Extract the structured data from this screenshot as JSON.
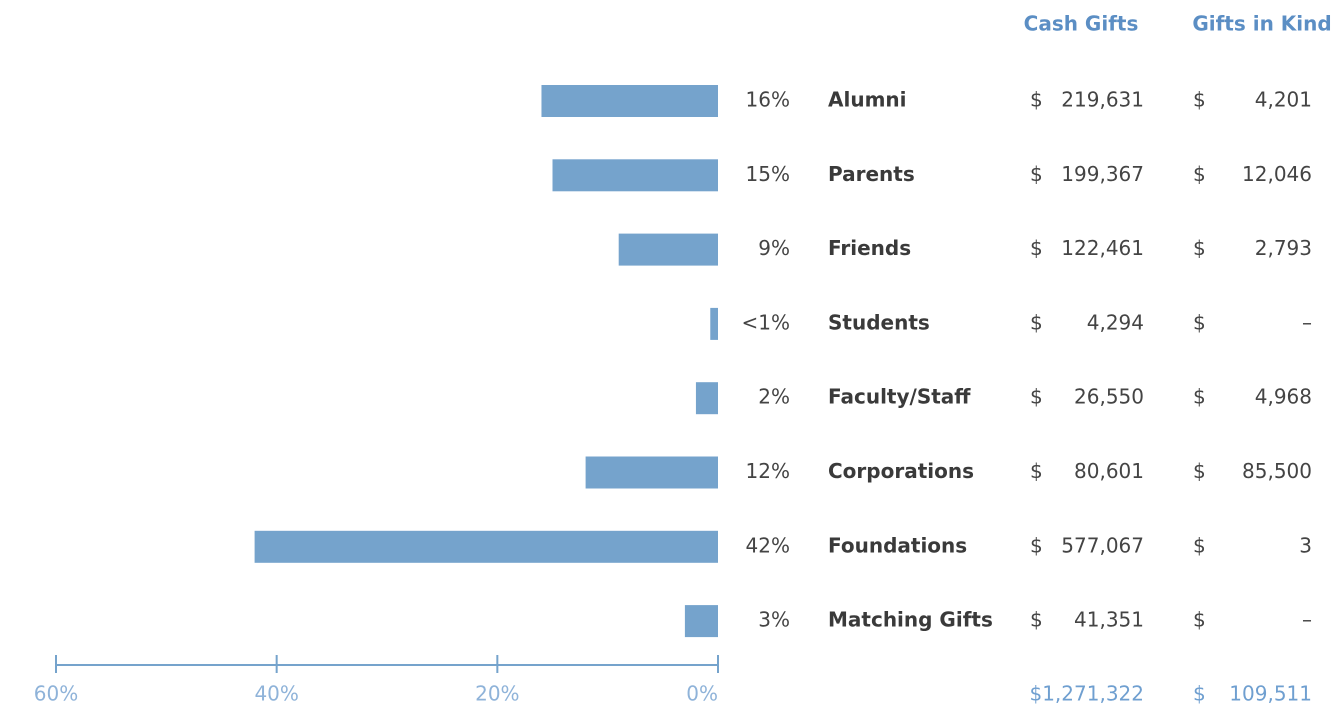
{
  "chart_data": {
    "type": "bar",
    "orientation": "horizontal",
    "color": "#75a3cc",
    "categories": [
      "Alumni",
      "Parents",
      "Friends",
      "Students",
      "Faculty/Staff",
      "Corporations",
      "Foundations",
      "Matching Gifts"
    ],
    "values": [
      16,
      15,
      9,
      0.7,
      2,
      12,
      42,
      3
    ],
    "value_labels": [
      "16%",
      "15%",
      "9%",
      "<1%",
      "2%",
      "12%",
      "42%",
      "3%"
    ],
    "xlim": [
      60,
      0
    ],
    "xticks": [
      {
        "value": 60,
        "label": "60%"
      },
      {
        "value": 40,
        "label": "40%"
      },
      {
        "value": 20,
        "label": "20%"
      },
      {
        "value": 0,
        "label": "0%"
      }
    ],
    "table": {
      "columns": [
        "Cash Gifts",
        "Gifts in Kind"
      ],
      "currency": "$",
      "rows": [
        [
          "219,631",
          "4,201"
        ],
        [
          "199,367",
          "12,046"
        ],
        [
          "122,461",
          "2,793"
        ],
        [
          "4,294",
          "–"
        ],
        [
          "26,550",
          "4,968"
        ],
        [
          "80,601",
          "85,500"
        ],
        [
          "577,067",
          "3"
        ],
        [
          "41,351",
          "–"
        ]
      ],
      "totals": [
        "$1,271,322",
        "109,511"
      ]
    }
  }
}
